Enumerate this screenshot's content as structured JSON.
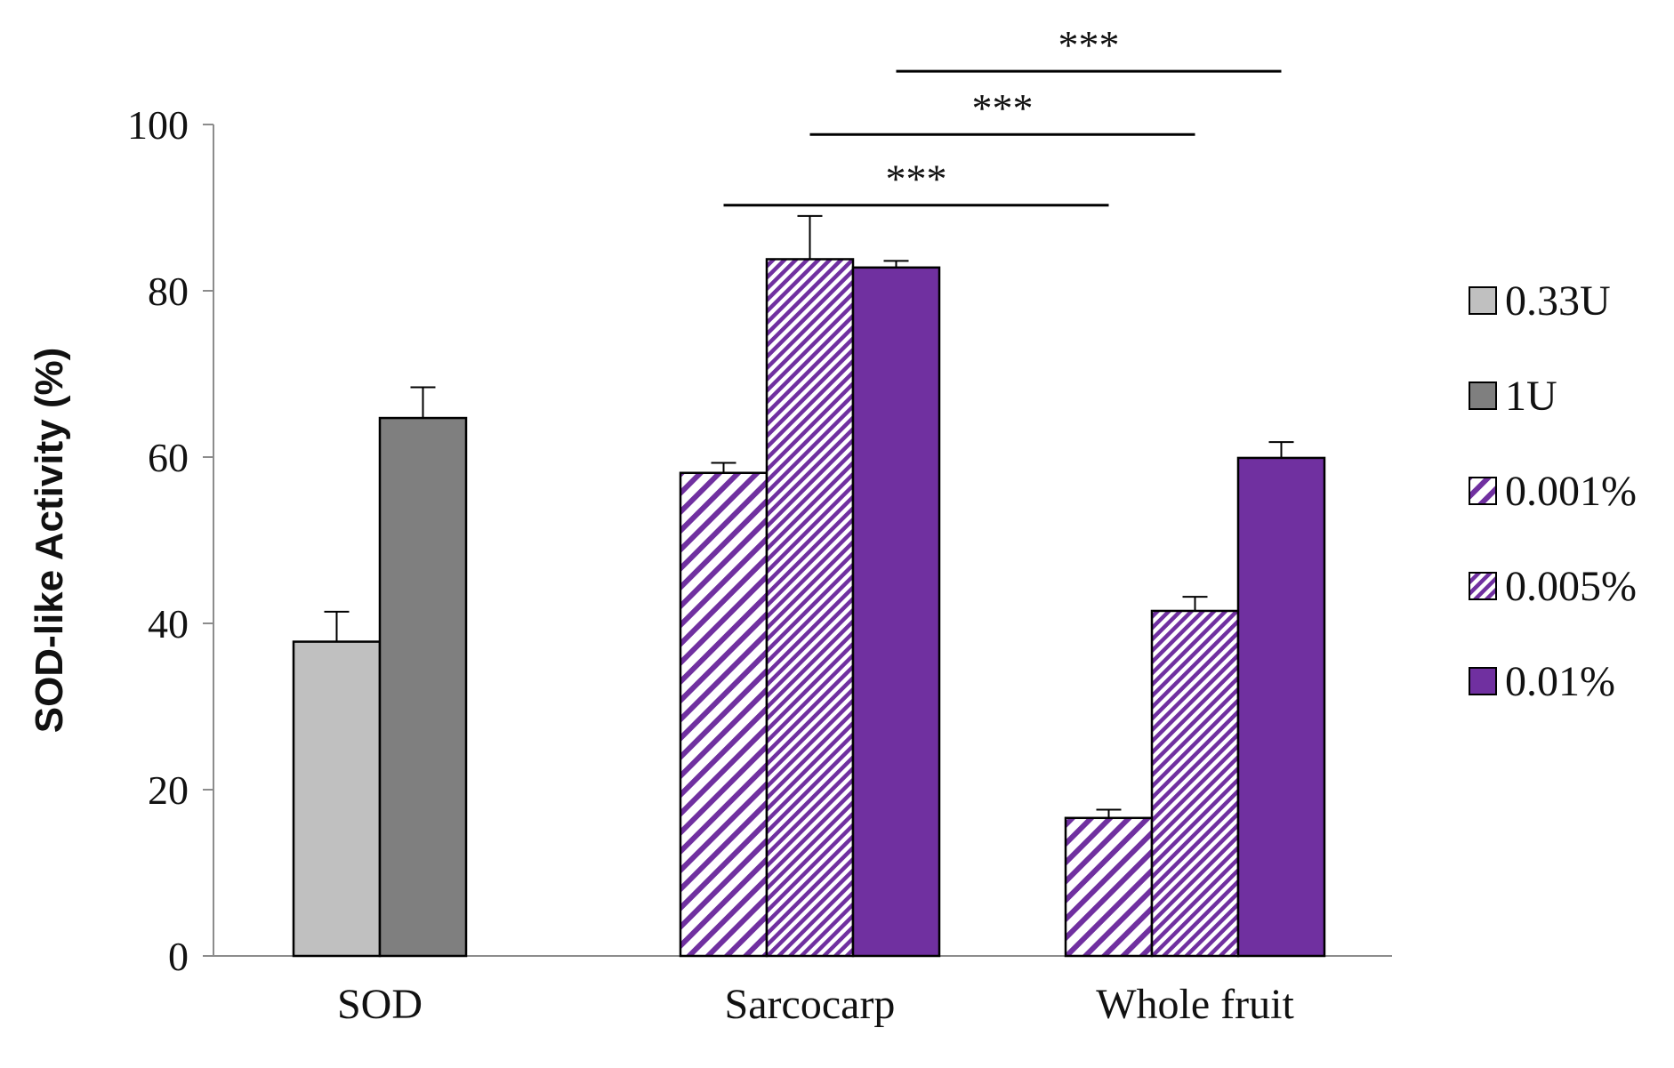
{
  "chart_data": {
    "type": "bar",
    "title": "",
    "xlabel": "",
    "ylabel": "SOD-like Activity (%)",
    "ylim": [
      0,
      100
    ],
    "yticks": [
      0,
      20,
      40,
      60,
      80,
      100
    ],
    "grid": false,
    "legend_position": "right",
    "groups": [
      {
        "name": "SOD",
        "bars": [
          {
            "series": "0.33U",
            "value": 37.8,
            "error": 3.6
          },
          {
            "series": "1U",
            "value": 64.7,
            "error": 3.7
          }
        ]
      },
      {
        "name": "Sarcocarp",
        "bars": [
          {
            "series": "0.001%",
            "value": 58.1,
            "error": 1.2
          },
          {
            "series": "0.005%",
            "value": 83.8,
            "error": 5.2
          },
          {
            "series": "0.01%",
            "value": 82.8,
            "error": 0.8
          }
        ]
      },
      {
        "name": "Whole fruit",
        "bars": [
          {
            "series": "0.001%",
            "value": 16.6,
            "error": 1.0
          },
          {
            "series": "0.005%",
            "value": 41.5,
            "error": 1.7
          },
          {
            "series": "0.01%",
            "value": 59.9,
            "error": 1.9
          }
        ]
      }
    ],
    "legend": [
      {
        "name": "0.33U",
        "fill": "solid",
        "color": "#c0c0c0"
      },
      {
        "name": "1U",
        "fill": "solid",
        "color": "#7f7f7f"
      },
      {
        "name": "0.001%",
        "fill": "hatch-sparse",
        "color": "#7030a0"
      },
      {
        "name": "0.005%",
        "fill": "hatch-dense",
        "color": "#7030a0"
      },
      {
        "name": "0.01%",
        "fill": "solid",
        "color": "#7030a0"
      }
    ],
    "significance": [
      {
        "from_group": "Sarcocarp",
        "from_series": "0.001%",
        "to_group": "Whole fruit",
        "to_series": "0.001%",
        "label": "***",
        "y": 90.3
      },
      {
        "from_group": "Sarcocarp",
        "from_series": "0.005%",
        "to_group": "Whole fruit",
        "to_series": "0.005%",
        "label": "***",
        "y": 98.8
      },
      {
        "from_group": "Sarcocarp",
        "from_series": "0.01%",
        "to_group": "Whole fruit",
        "to_series": "0.01%",
        "label": "***",
        "y": 106.4
      }
    ]
  }
}
